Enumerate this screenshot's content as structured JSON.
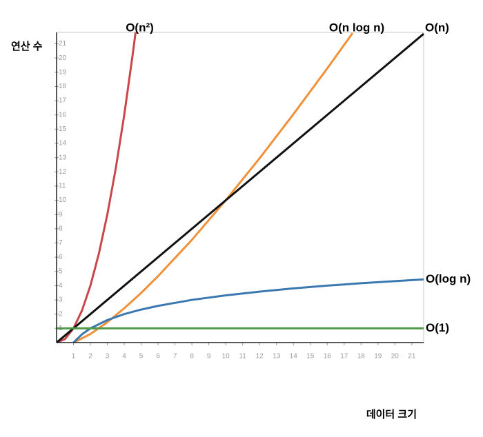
{
  "chart_data": {
    "type": "line",
    "x_label": "데이터 크기",
    "y_label": "연산 수",
    "xlim": [
      0,
      21.7
    ],
    "ylim": [
      0,
      21.8
    ],
    "xticks": [
      1,
      2,
      3,
      4,
      5,
      6,
      7,
      8,
      9,
      10,
      11,
      12,
      13,
      14,
      15,
      16,
      17,
      18,
      19,
      20,
      21
    ],
    "yticks": [
      1,
      2,
      3,
      4,
      5,
      6,
      7,
      8,
      9,
      10,
      11,
      12,
      13,
      14,
      15,
      16,
      17,
      18,
      19,
      20,
      21
    ],
    "series": [
      {
        "name": "O(n²)",
        "color": "#c9474a",
        "x": [
          0,
          0.5,
          1,
          1.5,
          2,
          2.5,
          3,
          3.5,
          4,
          4.5,
          4.67
        ],
        "values": [
          0,
          0.25,
          1,
          2.25,
          4,
          6.25,
          9,
          12.25,
          16,
          20.25,
          21.8
        ]
      },
      {
        "name": "O(n log n)",
        "color": "#f0913a",
        "x": [
          1,
          2,
          3,
          4,
          5,
          6,
          8,
          10,
          12,
          14,
          16,
          17.5
        ],
        "values": [
          0,
          0.6,
          1.43,
          2.41,
          3.49,
          4.67,
          7.22,
          10,
          12.95,
          16.05,
          19.27,
          21.75
        ]
      },
      {
        "name": "O(n)",
        "color": "#111111",
        "x": [
          0,
          21.7
        ],
        "values": [
          0,
          21.7
        ]
      },
      {
        "name": "O(log n)",
        "color": "#3b78b0",
        "x": [
          1,
          1.5,
          2,
          3,
          4,
          5,
          6,
          8,
          10,
          12,
          14,
          16,
          18,
          20,
          21.7
        ],
        "values": [
          0,
          0.58,
          1,
          1.58,
          2,
          2.32,
          2.58,
          3,
          3.32,
          3.58,
          3.81,
          4,
          4.17,
          4.32,
          4.44
        ]
      },
      {
        "name": "O(1)",
        "color": "#4e9a48",
        "x": [
          0,
          21.7
        ],
        "values": [
          1,
          1
        ]
      }
    ]
  }
}
